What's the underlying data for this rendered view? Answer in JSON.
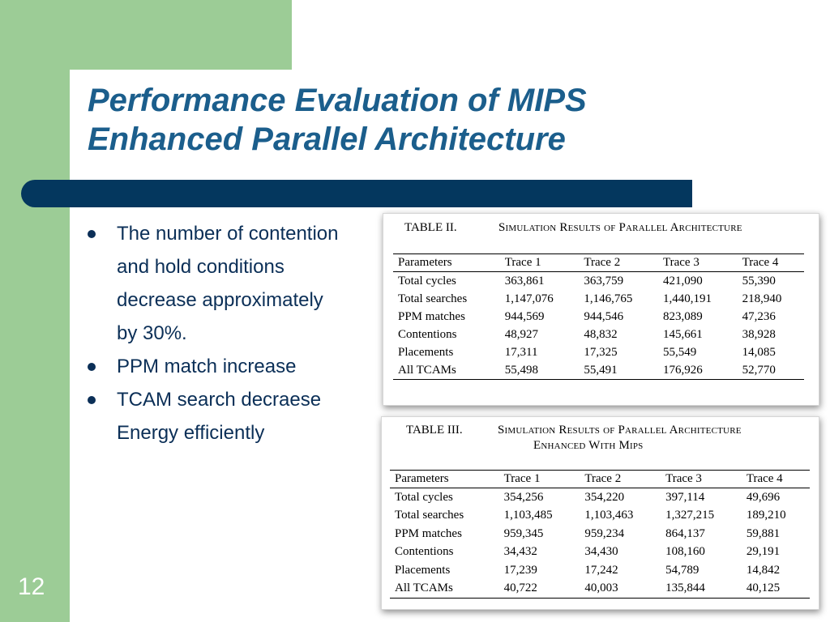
{
  "slide": {
    "title_line1": "Performance Evaluation of MIPS",
    "title_line2": "Enhanced Parallel Architecture",
    "slide_number": "12"
  },
  "bullets": [
    {
      "lines": [
        "The number of contention",
        "and hold conditions",
        "decrease approximately",
        "by 30%."
      ]
    },
    {
      "lines": [
        "PPM match increase"
      ]
    },
    {
      "lines": [
        "TCAM search decraese",
        "Energy efficiently"
      ]
    }
  ],
  "table2": {
    "label": "TABLE II.",
    "caption": "Simulation Results of Parallel Architecture",
    "headers": [
      "Parameters",
      "Trace 1",
      "Trace 2",
      "Trace 3",
      "Trace 4"
    ],
    "rows": [
      [
        "Total cycles",
        "363,861",
        "363,759",
        "421,090",
        "55,390"
      ],
      [
        "Total searches",
        "1,147,076",
        "1,146,765",
        "1,440,191",
        "218,940"
      ],
      [
        "PPM matches",
        "944,569",
        "944,546",
        "823,089",
        "47,236"
      ],
      [
        "Contentions",
        "48,927",
        "48,832",
        "145,661",
        "38,928"
      ],
      [
        "Placements",
        "17,311",
        "17,325",
        "55,549",
        "14,085"
      ],
      [
        "All TCAMs",
        "55,498",
        "55,491",
        "176,926",
        "52,770"
      ]
    ]
  },
  "table3": {
    "label": "TABLE III.",
    "caption_line1": "Simulation Results of Parallel Architecture",
    "caption_line2": "Enhanced With Mips",
    "headers": [
      "Parameters",
      "Trace 1",
      "Trace 2",
      "Trace 3",
      "Trace 4"
    ],
    "rows": [
      [
        "Total cycles",
        "354,256",
        "354,220",
        "397,114",
        "49,696"
      ],
      [
        "Total searches",
        "1,103,485",
        "1,103,463",
        "1,327,215",
        "189,210"
      ],
      [
        "PPM matches",
        "959,345",
        "959,234",
        "864,137",
        "59,881"
      ],
      [
        "Contentions",
        "34,432",
        "34,430",
        "108,160",
        "29,191"
      ],
      [
        "Placements",
        "17,239",
        "17,242",
        "54,789",
        "14,842"
      ],
      [
        "All TCAMs",
        "40,722",
        "40,003",
        "135,844",
        "40,125"
      ]
    ]
  },
  "colors": {
    "green_background": "#9ccc96",
    "title_blue": "#1b5e8c",
    "bar_navy": "#04375e",
    "bullet_text": "#0b2f57"
  }
}
